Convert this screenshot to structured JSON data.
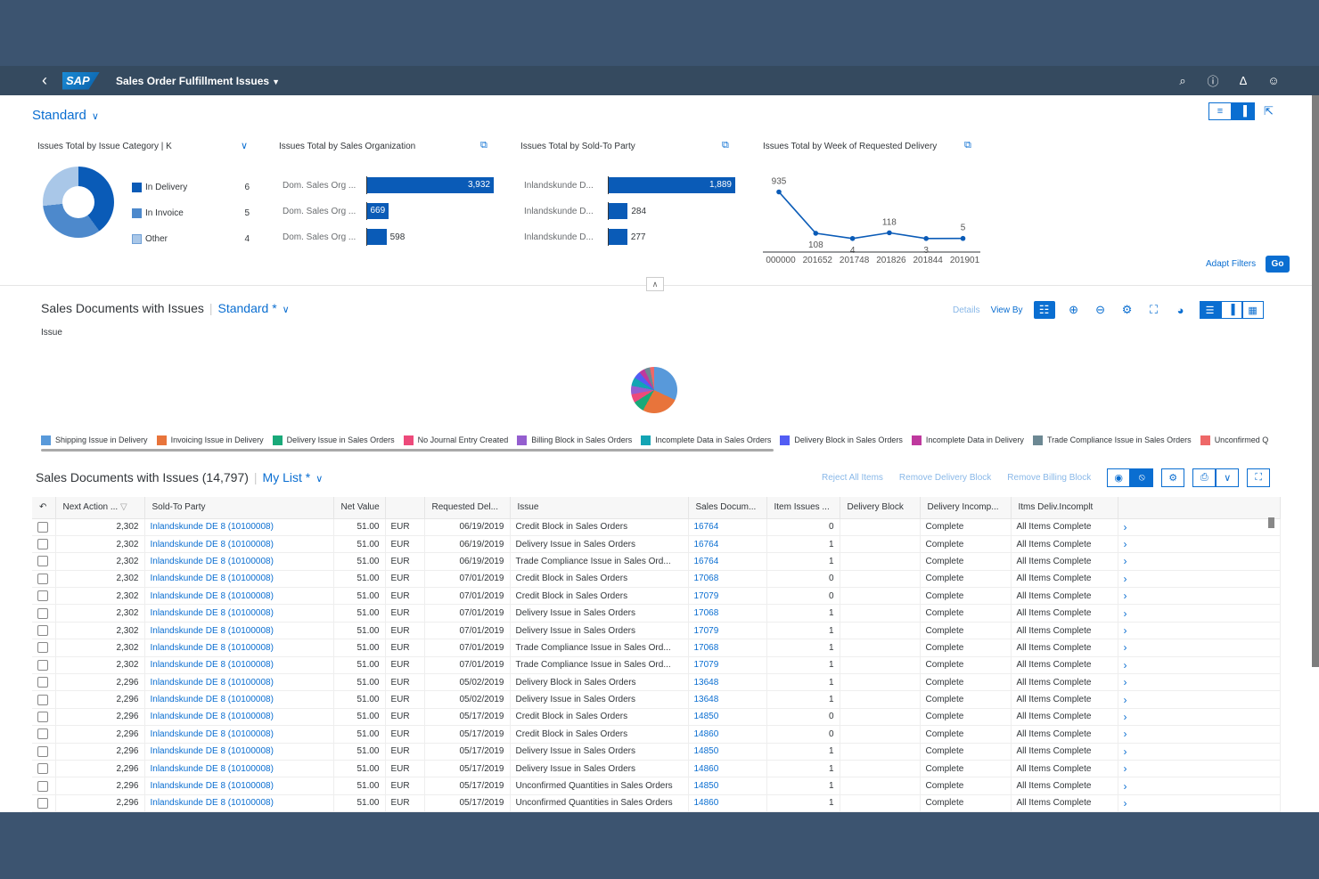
{
  "shell": {
    "back_icon": "chevron-left-icon",
    "logo": "SAP",
    "app_title": "Sales Order Fulfillment Issues",
    "icons": [
      "search-icon",
      "help-icon",
      "bell-icon",
      "user-icon"
    ]
  },
  "header": {
    "variant": "Standard",
    "adapt_filters": "Adapt Filters",
    "go": "Go"
  },
  "cards": {
    "category": {
      "title": "Issues Total by Issue Category  | K",
      "items": [
        {
          "label": "In Delivery",
          "value": "6",
          "color": "#0a5bb7"
        },
        {
          "label": "In Invoice",
          "value": "5",
          "color": "#4d89cc"
        },
        {
          "label": "Other",
          "value": "4",
          "color": "#a9c7e8"
        }
      ]
    },
    "org": {
      "title": "Issues Total by Sales Organization",
      "bars": [
        {
          "label": "Dom. Sales Org ...",
          "value": 3932,
          "display": "3,932"
        },
        {
          "label": "Dom. Sales Org ...",
          "value": 669,
          "display": "669"
        },
        {
          "label": "Dom. Sales Org ...",
          "value": 598,
          "display": "598"
        }
      ]
    },
    "party": {
      "title": "Issues Total by Sold-To Party",
      "bars": [
        {
          "label": "Inlandskunde D...",
          "value": 1889,
          "display": "1,889"
        },
        {
          "label": "Inlandskunde D...",
          "value": 284,
          "display": "284"
        },
        {
          "label": "Inlandskunde D...",
          "value": 277,
          "display": "277"
        }
      ]
    },
    "week": {
      "title": "Issues Total by Week of Requested Delivery",
      "points": [
        {
          "x": "000000",
          "y": 935
        },
        {
          "x": "201652",
          "y": 108
        },
        {
          "x": "201748",
          "y": 4
        },
        {
          "x": "201826",
          "y": 118
        },
        {
          "x": "201844",
          "y": 3
        },
        {
          "x": "201901",
          "y": 5
        }
      ]
    }
  },
  "chart_section": {
    "title": "Sales Documents with Issues",
    "variant": "Standard *",
    "details": "Details",
    "view_by": "View By",
    "dimension": "Issue",
    "legend": [
      {
        "label": "Shipping Issue in Delivery",
        "color": "#5899da"
      },
      {
        "label": "Invoicing Issue in Delivery",
        "color": "#e8743b"
      },
      {
        "label": "Delivery Issue in Sales Orders",
        "color": "#19a979"
      },
      {
        "label": "No Journal Entry Created",
        "color": "#ed4a7b"
      },
      {
        "label": "Billing Block in Sales Orders",
        "color": "#945ecf"
      },
      {
        "label": "Incomplete Data in Sales Orders",
        "color": "#13a4b4"
      },
      {
        "label": "Delivery Block in Sales Orders",
        "color": "#525df4"
      },
      {
        "label": "Incomplete Data in Delivery",
        "color": "#bf399e"
      },
      {
        "label": "Trade Compliance Issue in Sales Orders",
        "color": "#6c8893"
      },
      {
        "label": "Unconfirmed Q",
        "color": "#ee6868"
      }
    ]
  },
  "table": {
    "title": "Sales Documents with Issues (14,797)",
    "variant": "My List *",
    "actions": {
      "reject": "Reject All Items",
      "remove_delivery": "Remove Delivery Block",
      "remove_billing": "Remove Billing Block"
    },
    "columns": [
      "Next Action ...",
      "Sold-To Party",
      "Net Value",
      "Requested Del...",
      "Issue",
      "Sales Docum...",
      "Item Issues ...",
      "Delivery Block",
      "Delivery Incomp...",
      "Itms Deliv.Incomplt"
    ],
    "rows": [
      [
        "2,302",
        "Inlandskunde DE 8 (10100008)",
        "51.00",
        "EUR",
        "06/19/2019",
        "Credit Block in Sales Orders",
        "16764",
        "0",
        "",
        "Complete",
        "All Items Complete"
      ],
      [
        "2,302",
        "Inlandskunde DE 8 (10100008)",
        "51.00",
        "EUR",
        "06/19/2019",
        "Delivery Issue in Sales Orders",
        "16764",
        "1",
        "",
        "Complete",
        "All Items Complete"
      ],
      [
        "2,302",
        "Inlandskunde DE 8 (10100008)",
        "51.00",
        "EUR",
        "06/19/2019",
        "Trade Compliance Issue in Sales Ord...",
        "16764",
        "1",
        "",
        "Complete",
        "All Items Complete"
      ],
      [
        "2,302",
        "Inlandskunde DE 8 (10100008)",
        "51.00",
        "EUR",
        "07/01/2019",
        "Credit Block in Sales Orders",
        "17068",
        "0",
        "",
        "Complete",
        "All Items Complete"
      ],
      [
        "2,302",
        "Inlandskunde DE 8 (10100008)",
        "51.00",
        "EUR",
        "07/01/2019",
        "Credit Block in Sales Orders",
        "17079",
        "0",
        "",
        "Complete",
        "All Items Complete"
      ],
      [
        "2,302",
        "Inlandskunde DE 8 (10100008)",
        "51.00",
        "EUR",
        "07/01/2019",
        "Delivery Issue in Sales Orders",
        "17068",
        "1",
        "",
        "Complete",
        "All Items Complete"
      ],
      [
        "2,302",
        "Inlandskunde DE 8 (10100008)",
        "51.00",
        "EUR",
        "07/01/2019",
        "Delivery Issue in Sales Orders",
        "17079",
        "1",
        "",
        "Complete",
        "All Items Complete"
      ],
      [
        "2,302",
        "Inlandskunde DE 8 (10100008)",
        "51.00",
        "EUR",
        "07/01/2019",
        "Trade Compliance Issue in Sales Ord...",
        "17068",
        "1",
        "",
        "Complete",
        "All Items Complete"
      ],
      [
        "2,302",
        "Inlandskunde DE 8 (10100008)",
        "51.00",
        "EUR",
        "07/01/2019",
        "Trade Compliance Issue in Sales Ord...",
        "17079",
        "1",
        "",
        "Complete",
        "All Items Complete"
      ],
      [
        "2,296",
        "Inlandskunde DE 8 (10100008)",
        "51.00",
        "EUR",
        "05/02/2019",
        "Delivery Block in Sales Orders",
        "13648",
        "1",
        "",
        "Complete",
        "All Items Complete"
      ],
      [
        "2,296",
        "Inlandskunde DE 8 (10100008)",
        "51.00",
        "EUR",
        "05/02/2019",
        "Delivery Issue in Sales Orders",
        "13648",
        "1",
        "",
        "Complete",
        "All Items Complete"
      ],
      [
        "2,296",
        "Inlandskunde DE 8 (10100008)",
        "51.00",
        "EUR",
        "05/17/2019",
        "Credit Block in Sales Orders",
        "14850",
        "0",
        "",
        "Complete",
        "All Items Complete"
      ],
      [
        "2,296",
        "Inlandskunde DE 8 (10100008)",
        "51.00",
        "EUR",
        "05/17/2019",
        "Credit Block in Sales Orders",
        "14860",
        "0",
        "",
        "Complete",
        "All Items Complete"
      ],
      [
        "2,296",
        "Inlandskunde DE 8 (10100008)",
        "51.00",
        "EUR",
        "05/17/2019",
        "Delivery Issue in Sales Orders",
        "14850",
        "1",
        "",
        "Complete",
        "All Items Complete"
      ],
      [
        "2,296",
        "Inlandskunde DE 8 (10100008)",
        "51.00",
        "EUR",
        "05/17/2019",
        "Delivery Issue in Sales Orders",
        "14860",
        "1",
        "",
        "Complete",
        "All Items Complete"
      ],
      [
        "2,296",
        "Inlandskunde DE 8 (10100008)",
        "51.00",
        "EUR",
        "05/17/2019",
        "Unconfirmed Quantities in Sales Orders",
        "14850",
        "1",
        "",
        "Complete",
        "All Items Complete"
      ],
      [
        "2,296",
        "Inlandskunde DE 8 (10100008)",
        "51.00",
        "EUR",
        "05/17/2019",
        "Unconfirmed Quantities in Sales Orders",
        "14860",
        "1",
        "",
        "Complete",
        "All Items Complete"
      ]
    ]
  }
}
